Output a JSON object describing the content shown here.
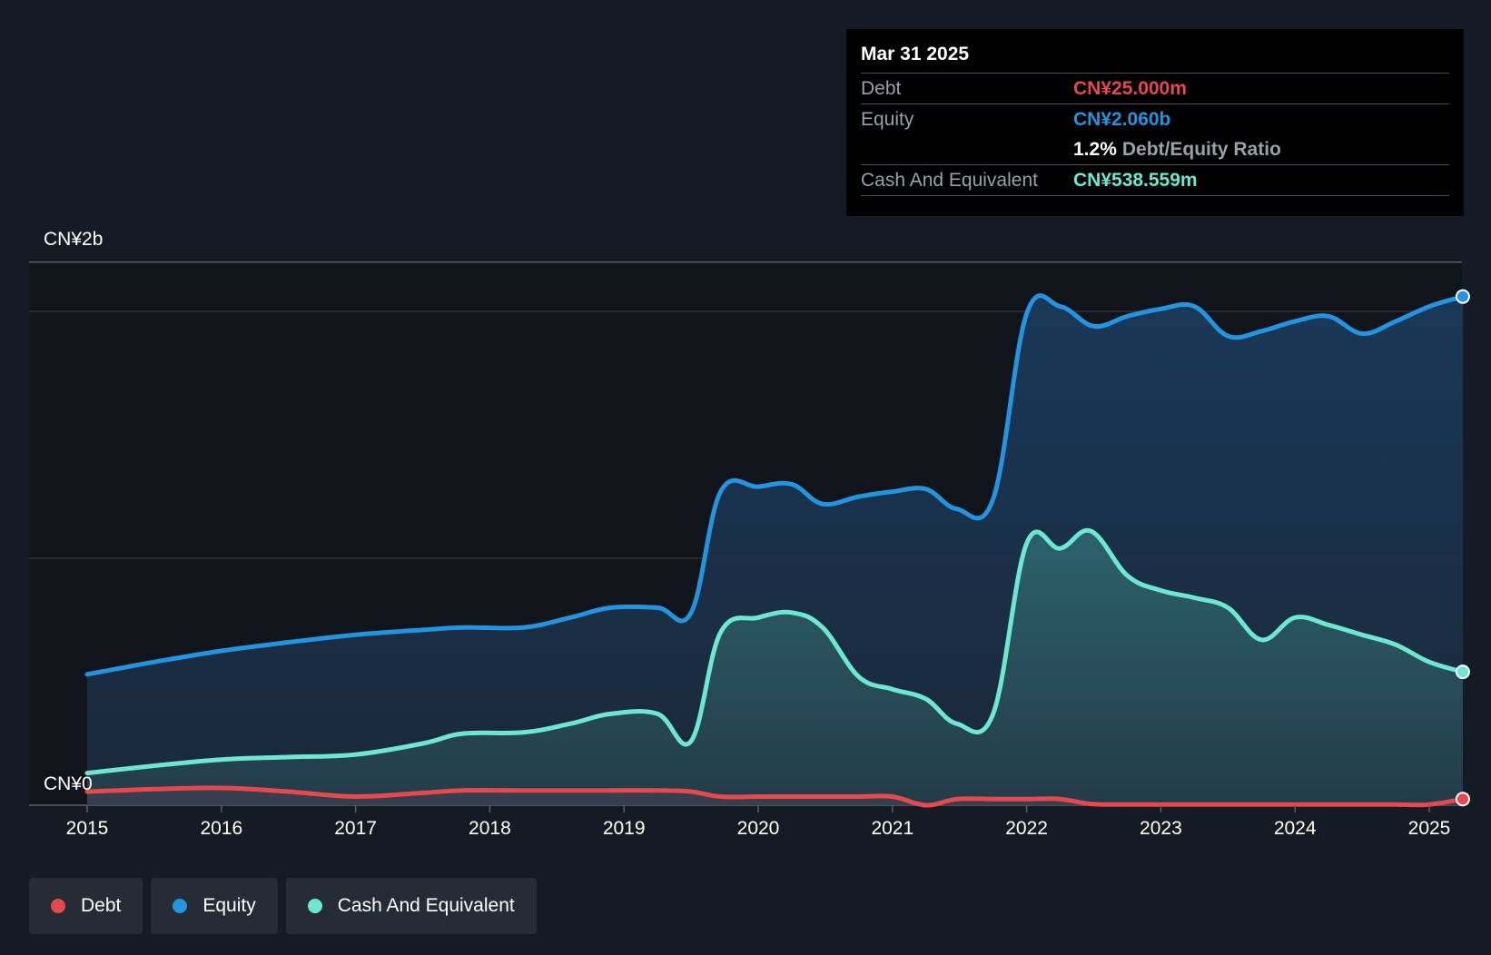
{
  "tooltip": {
    "date": "Mar 31 2025",
    "debt_label": "Debt",
    "debt_value": "CN¥25.000m",
    "equity_label": "Equity",
    "equity_value": "CN¥2.060b",
    "ratio_value": "1.2%",
    "ratio_label": "Debt/Equity Ratio",
    "cash_label": "Cash And Equivalent",
    "cash_value": "CN¥538.559m"
  },
  "legend": [
    {
      "label": "Debt",
      "color": "#e5484d"
    },
    {
      "label": "Equity",
      "color": "#2394df"
    },
    {
      "label": "Cash And Equivalent",
      "color": "#6ee7d2"
    }
  ],
  "colors": {
    "debt": "#e5484d",
    "equity": "#2394df",
    "cash": "#6ee7d2",
    "background": "#151b24",
    "plot_background": "#10141b"
  },
  "chart_data": {
    "type": "area",
    "y_top_label": "CN¥2b",
    "y_zero_label": "CN¥0",
    "x_ticks": [
      "2015",
      "2016",
      "2017",
      "2018",
      "2019",
      "2020",
      "2021",
      "2022",
      "2023",
      "2024",
      "2025"
    ],
    "ylim": [
      0,
      2.2
    ],
    "y_unit": "CN¥ billions",
    "series": [
      {
        "name": "Equity",
        "color": "#2394df",
        "points": [
          [
            2015.0,
            0.53
          ],
          [
            2015.5,
            0.58
          ],
          [
            2016.0,
            0.625
          ],
          [
            2016.5,
            0.66
          ],
          [
            2017.0,
            0.69
          ],
          [
            2017.5,
            0.71
          ],
          [
            2017.8,
            0.72
          ],
          [
            2018.25,
            0.72
          ],
          [
            2018.6,
            0.76
          ],
          [
            2018.9,
            0.8
          ],
          [
            2019.25,
            0.8
          ],
          [
            2019.5,
            0.78
          ],
          [
            2019.72,
            1.27
          ],
          [
            2020.0,
            1.29
          ],
          [
            2020.25,
            1.3
          ],
          [
            2020.48,
            1.22
          ],
          [
            2020.75,
            1.25
          ],
          [
            2021.0,
            1.27
          ],
          [
            2021.25,
            1.28
          ],
          [
            2021.48,
            1.2
          ],
          [
            2021.75,
            1.24
          ],
          [
            2022.0,
            1.99
          ],
          [
            2022.25,
            2.02
          ],
          [
            2022.5,
            1.94
          ],
          [
            2022.75,
            1.98
          ],
          [
            2023.0,
            2.01
          ],
          [
            2023.25,
            2.02
          ],
          [
            2023.5,
            1.9
          ],
          [
            2023.75,
            1.92
          ],
          [
            2024.0,
            1.96
          ],
          [
            2024.25,
            1.98
          ],
          [
            2024.5,
            1.91
          ],
          [
            2024.75,
            1.96
          ],
          [
            2025.0,
            2.02
          ],
          [
            2025.25,
            2.06
          ]
        ]
      },
      {
        "name": "Cash And Equivalent",
        "color": "#6ee7d2",
        "points": [
          [
            2015.0,
            0.13
          ],
          [
            2015.5,
            0.16
          ],
          [
            2016.0,
            0.185
          ],
          [
            2016.5,
            0.195
          ],
          [
            2017.0,
            0.205
          ],
          [
            2017.5,
            0.25
          ],
          [
            2017.8,
            0.29
          ],
          [
            2018.25,
            0.295
          ],
          [
            2018.6,
            0.33
          ],
          [
            2018.9,
            0.37
          ],
          [
            2019.25,
            0.37
          ],
          [
            2019.5,
            0.26
          ],
          [
            2019.72,
            0.7
          ],
          [
            2020.0,
            0.76
          ],
          [
            2020.25,
            0.78
          ],
          [
            2020.48,
            0.72
          ],
          [
            2020.75,
            0.52
          ],
          [
            2021.0,
            0.47
          ],
          [
            2021.25,
            0.43
          ],
          [
            2021.48,
            0.33
          ],
          [
            2021.75,
            0.37
          ],
          [
            2022.0,
            1.06
          ],
          [
            2022.25,
            1.04
          ],
          [
            2022.48,
            1.11
          ],
          [
            2022.75,
            0.93
          ],
          [
            2023.0,
            0.87
          ],
          [
            2023.25,
            0.84
          ],
          [
            2023.5,
            0.8
          ],
          [
            2023.75,
            0.67
          ],
          [
            2024.0,
            0.76
          ],
          [
            2024.25,
            0.73
          ],
          [
            2024.5,
            0.69
          ],
          [
            2024.75,
            0.65
          ],
          [
            2025.0,
            0.58
          ],
          [
            2025.25,
            0.54
          ]
        ]
      },
      {
        "name": "Debt",
        "color": "#e5484d",
        "points": [
          [
            2015.0,
            0.055
          ],
          [
            2015.5,
            0.065
          ],
          [
            2016.0,
            0.07
          ],
          [
            2016.5,
            0.055
          ],
          [
            2017.0,
            0.035
          ],
          [
            2017.5,
            0.05
          ],
          [
            2017.8,
            0.06
          ],
          [
            2018.25,
            0.06
          ],
          [
            2018.6,
            0.06
          ],
          [
            2018.9,
            0.06
          ],
          [
            2019.25,
            0.06
          ],
          [
            2019.5,
            0.055
          ],
          [
            2019.72,
            0.035
          ],
          [
            2020.0,
            0.035
          ],
          [
            2020.25,
            0.035
          ],
          [
            2020.48,
            0.035
          ],
          [
            2020.75,
            0.035
          ],
          [
            2021.0,
            0.035
          ],
          [
            2021.25,
            0.0
          ],
          [
            2021.48,
            0.025
          ],
          [
            2021.75,
            0.025
          ],
          [
            2022.0,
            0.025
          ],
          [
            2022.25,
            0.025
          ],
          [
            2022.48,
            0.005
          ],
          [
            2022.75,
            0.003
          ],
          [
            2023.0,
            0.003
          ],
          [
            2023.25,
            0.003
          ],
          [
            2023.5,
            0.003
          ],
          [
            2023.75,
            0.003
          ],
          [
            2024.0,
            0.003
          ],
          [
            2024.25,
            0.003
          ],
          [
            2024.5,
            0.003
          ],
          [
            2024.75,
            0.003
          ],
          [
            2025.0,
            0.003
          ],
          [
            2025.25,
            0.025
          ]
        ]
      }
    ]
  }
}
